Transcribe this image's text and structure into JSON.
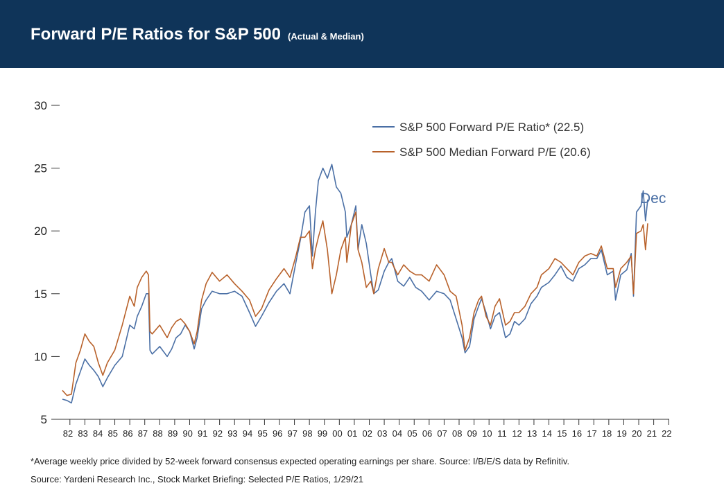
{
  "header": {
    "title": "Forward P/E Ratios for S&P 500",
    "subtitle": "(Actual & Median)",
    "background": "#0f3459"
  },
  "footnotes": {
    "line1": "*Average weekly price divided by 52-week forward consensus expected operating earnings per share. Source: I/B/E/S data by Refinitiv.",
    "line2": "Source: Yardeni Research Inc., Stock Market Briefing: Selected P/E Ratios, 1/29/21"
  },
  "chart_data": {
    "type": "line",
    "title": "Forward P/E Ratios for S&P 500",
    "xlabel": "",
    "ylabel": "",
    "x_tick_labels": [
      "82",
      "83",
      "84",
      "85",
      "86",
      "87",
      "88",
      "89",
      "90",
      "91",
      "92",
      "93",
      "94",
      "95",
      "96",
      "97",
      "98",
      "99",
      "00",
      "01",
      "02",
      "03",
      "04",
      "05",
      "06",
      "07",
      "08",
      "09",
      "10",
      "11",
      "12",
      "13",
      "14",
      "15",
      "16",
      "17",
      "18",
      "19",
      "20",
      "21",
      "22"
    ],
    "xlim": [
      1982,
      2023
    ],
    "ylim": [
      5,
      30
    ],
    "y_ticks": [
      5,
      10,
      15,
      20,
      25,
      30
    ],
    "grid": false,
    "legend_position": "top-right",
    "annotation": {
      "text": "Dec",
      "color": "#4a6fa5"
    },
    "series": [
      {
        "name": "S&P 500 Forward P/E Ratio* (22.5)",
        "color": "#4a6fa5",
        "points": [
          [
            1982.0,
            6.6
          ],
          [
            1982.3,
            6.5
          ],
          [
            1982.6,
            6.3
          ],
          [
            1982.9,
            7.8
          ],
          [
            1983.2,
            8.8
          ],
          [
            1983.5,
            9.8
          ],
          [
            1983.8,
            9.3
          ],
          [
            1984.1,
            8.9
          ],
          [
            1984.4,
            8.4
          ],
          [
            1984.7,
            7.6
          ],
          [
            1985.0,
            8.3
          ],
          [
            1985.5,
            9.3
          ],
          [
            1986.0,
            10.0
          ],
          [
            1986.5,
            12.5
          ],
          [
            1986.8,
            12.2
          ],
          [
            1987.0,
            13.2
          ],
          [
            1987.3,
            14.0
          ],
          [
            1987.6,
            15.0
          ],
          [
            1987.75,
            15.0
          ],
          [
            1987.85,
            10.5
          ],
          [
            1988.0,
            10.2
          ],
          [
            1988.5,
            10.8
          ],
          [
            1989.0,
            10.0
          ],
          [
            1989.3,
            10.6
          ],
          [
            1989.6,
            11.5
          ],
          [
            1989.9,
            11.8
          ],
          [
            1990.2,
            12.5
          ],
          [
            1990.5,
            12.0
          ],
          [
            1990.8,
            10.6
          ],
          [
            1991.0,
            11.5
          ],
          [
            1991.3,
            13.8
          ],
          [
            1991.6,
            14.5
          ],
          [
            1992.0,
            15.2
          ],
          [
            1992.5,
            15.0
          ],
          [
            1993.0,
            15.0
          ],
          [
            1993.5,
            15.2
          ],
          [
            1994.0,
            14.8
          ],
          [
            1994.5,
            13.5
          ],
          [
            1994.9,
            12.4
          ],
          [
            1995.3,
            13.2
          ],
          [
            1995.8,
            14.3
          ],
          [
            1996.3,
            15.2
          ],
          [
            1996.8,
            15.8
          ],
          [
            1997.2,
            15.0
          ],
          [
            1997.6,
            17.5
          ],
          [
            1997.9,
            19.3
          ],
          [
            1998.2,
            21.5
          ],
          [
            1998.5,
            22.0
          ],
          [
            1998.7,
            18.0
          ],
          [
            1998.9,
            21.5
          ],
          [
            1999.1,
            24.0
          ],
          [
            1999.4,
            25.0
          ],
          [
            1999.7,
            24.2
          ],
          [
            2000.0,
            25.3
          ],
          [
            2000.3,
            23.5
          ],
          [
            2000.6,
            23.0
          ],
          [
            2000.9,
            21.5
          ],
          [
            2001.0,
            19.5
          ],
          [
            2001.3,
            20.5
          ],
          [
            2001.6,
            22.0
          ],
          [
            2001.75,
            18.5
          ],
          [
            2002.0,
            20.5
          ],
          [
            2002.3,
            19.0
          ],
          [
            2002.6,
            16.5
          ],
          [
            2002.8,
            15.0
          ],
          [
            2003.1,
            15.3
          ],
          [
            2003.5,
            16.8
          ],
          [
            2003.8,
            17.5
          ],
          [
            2004.0,
            17.8
          ],
          [
            2004.4,
            16.0
          ],
          [
            2004.8,
            15.6
          ],
          [
            2005.2,
            16.3
          ],
          [
            2005.6,
            15.5
          ],
          [
            2006.0,
            15.2
          ],
          [
            2006.5,
            14.5
          ],
          [
            2007.0,
            15.2
          ],
          [
            2007.5,
            15.0
          ],
          [
            2007.9,
            14.5
          ],
          [
            2008.3,
            13.0
          ],
          [
            2008.7,
            11.5
          ],
          [
            2008.9,
            10.3
          ],
          [
            2009.2,
            10.8
          ],
          [
            2009.5,
            13.0
          ],
          [
            2009.8,
            14.0
          ],
          [
            2010.0,
            14.6
          ],
          [
            2010.3,
            13.5
          ],
          [
            2010.6,
            12.2
          ],
          [
            2010.9,
            13.2
          ],
          [
            2011.2,
            13.5
          ],
          [
            2011.6,
            11.5
          ],
          [
            2011.9,
            11.8
          ],
          [
            2012.2,
            12.8
          ],
          [
            2012.5,
            12.5
          ],
          [
            2012.9,
            13.0
          ],
          [
            2013.3,
            14.2
          ],
          [
            2013.7,
            14.8
          ],
          [
            2014.0,
            15.5
          ],
          [
            2014.5,
            15.9
          ],
          [
            2014.9,
            16.5
          ],
          [
            2015.3,
            17.2
          ],
          [
            2015.7,
            16.3
          ],
          [
            2016.1,
            16.0
          ],
          [
            2016.5,
            17.0
          ],
          [
            2016.9,
            17.3
          ],
          [
            2017.3,
            17.8
          ],
          [
            2017.7,
            17.8
          ],
          [
            2018.0,
            18.5
          ],
          [
            2018.4,
            16.5
          ],
          [
            2018.8,
            16.8
          ],
          [
            2018.95,
            14.5
          ],
          [
            2019.3,
            16.5
          ],
          [
            2019.7,
            16.9
          ],
          [
            2020.0,
            18.2
          ],
          [
            2020.15,
            14.8
          ],
          [
            2020.35,
            21.5
          ],
          [
            2020.65,
            22.0
          ],
          [
            2020.8,
            23.2
          ],
          [
            2020.95,
            20.8
          ],
          [
            2021.1,
            22.5
          ]
        ]
      },
      {
        "name": "S&P 500 Median Forward P/E (20.6)",
        "color": "#b8612a",
        "points": [
          [
            1982.0,
            7.3
          ],
          [
            1982.3,
            6.9
          ],
          [
            1982.6,
            7.0
          ],
          [
            1982.9,
            9.5
          ],
          [
            1983.2,
            10.5
          ],
          [
            1983.5,
            11.8
          ],
          [
            1983.8,
            11.2
          ],
          [
            1984.1,
            10.8
          ],
          [
            1984.4,
            9.5
          ],
          [
            1984.7,
            8.5
          ],
          [
            1985.0,
            9.5
          ],
          [
            1985.5,
            10.5
          ],
          [
            1986.0,
            12.5
          ],
          [
            1986.5,
            14.8
          ],
          [
            1986.8,
            14.0
          ],
          [
            1987.0,
            15.5
          ],
          [
            1987.3,
            16.3
          ],
          [
            1987.6,
            16.8
          ],
          [
            1987.75,
            16.5
          ],
          [
            1987.85,
            12.0
          ],
          [
            1988.0,
            11.8
          ],
          [
            1988.5,
            12.5
          ],
          [
            1989.0,
            11.5
          ],
          [
            1989.3,
            12.3
          ],
          [
            1989.6,
            12.8
          ],
          [
            1989.9,
            13.0
          ],
          [
            1990.2,
            12.6
          ],
          [
            1990.5,
            12.0
          ],
          [
            1990.8,
            11.0
          ],
          [
            1991.0,
            12.0
          ],
          [
            1991.3,
            14.5
          ],
          [
            1991.6,
            15.8
          ],
          [
            1992.0,
            16.7
          ],
          [
            1992.5,
            16.0
          ],
          [
            1993.0,
            16.5
          ],
          [
            1993.5,
            15.8
          ],
          [
            1994.0,
            15.2
          ],
          [
            1994.5,
            14.5
          ],
          [
            1994.9,
            13.2
          ],
          [
            1995.3,
            13.8
          ],
          [
            1995.8,
            15.3
          ],
          [
            1996.3,
            16.2
          ],
          [
            1996.8,
            17.0
          ],
          [
            1997.2,
            16.3
          ],
          [
            1997.6,
            18.0
          ],
          [
            1997.9,
            19.5
          ],
          [
            1998.2,
            19.5
          ],
          [
            1998.5,
            20.0
          ],
          [
            1998.7,
            17.0
          ],
          [
            1998.9,
            18.5
          ],
          [
            1999.1,
            19.5
          ],
          [
            1999.4,
            20.8
          ],
          [
            1999.7,
            18.5
          ],
          [
            2000.0,
            15.0
          ],
          [
            2000.3,
            16.5
          ],
          [
            2000.6,
            18.5
          ],
          [
            2000.9,
            19.5
          ],
          [
            2001.0,
            17.5
          ],
          [
            2001.3,
            20.5
          ],
          [
            2001.6,
            21.5
          ],
          [
            2001.75,
            18.5
          ],
          [
            2002.0,
            17.5
          ],
          [
            2002.3,
            15.5
          ],
          [
            2002.6,
            16.0
          ],
          [
            2002.8,
            15.0
          ],
          [
            2003.1,
            17.0
          ],
          [
            2003.5,
            18.6
          ],
          [
            2003.8,
            17.5
          ],
          [
            2004.0,
            17.5
          ],
          [
            2004.4,
            16.5
          ],
          [
            2004.8,
            17.3
          ],
          [
            2005.2,
            16.8
          ],
          [
            2005.6,
            16.5
          ],
          [
            2006.0,
            16.5
          ],
          [
            2006.5,
            16.0
          ],
          [
            2007.0,
            17.3
          ],
          [
            2007.5,
            16.5
          ],
          [
            2007.9,
            15.2
          ],
          [
            2008.3,
            14.8
          ],
          [
            2008.7,
            12.5
          ],
          [
            2008.9,
            10.5
          ],
          [
            2009.2,
            11.5
          ],
          [
            2009.5,
            13.5
          ],
          [
            2009.8,
            14.5
          ],
          [
            2010.0,
            14.8
          ],
          [
            2010.3,
            13.2
          ],
          [
            2010.6,
            12.5
          ],
          [
            2010.9,
            14.0
          ],
          [
            2011.2,
            14.6
          ],
          [
            2011.6,
            12.5
          ],
          [
            2011.9,
            12.8
          ],
          [
            2012.2,
            13.5
          ],
          [
            2012.5,
            13.5
          ],
          [
            2012.9,
            14.0
          ],
          [
            2013.3,
            15.0
          ],
          [
            2013.7,
            15.5
          ],
          [
            2014.0,
            16.5
          ],
          [
            2014.5,
            17.0
          ],
          [
            2014.9,
            17.8
          ],
          [
            2015.3,
            17.5
          ],
          [
            2015.7,
            17.0
          ],
          [
            2016.1,
            16.5
          ],
          [
            2016.5,
            17.5
          ],
          [
            2016.9,
            18.0
          ],
          [
            2017.3,
            18.2
          ],
          [
            2017.7,
            18.0
          ],
          [
            2018.0,
            18.8
          ],
          [
            2018.4,
            17.0
          ],
          [
            2018.8,
            17.0
          ],
          [
            2018.95,
            15.5
          ],
          [
            2019.3,
            17.0
          ],
          [
            2019.7,
            17.5
          ],
          [
            2020.0,
            18.0
          ],
          [
            2020.15,
            15.0
          ],
          [
            2020.35,
            19.8
          ],
          [
            2020.65,
            20.0
          ],
          [
            2020.8,
            20.5
          ],
          [
            2020.95,
            18.5
          ],
          [
            2021.1,
            20.6
          ]
        ]
      }
    ]
  }
}
